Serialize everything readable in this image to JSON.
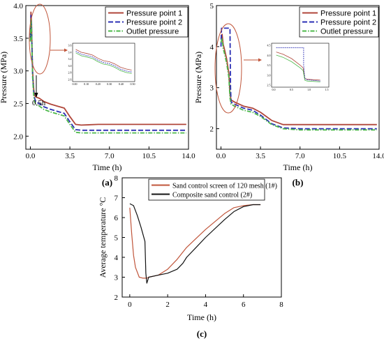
{
  "chart_data": [
    {
      "panel": "(a)",
      "type": "line",
      "xlabel": "Time (h)",
      "ylabel": "Pressure (MPa)",
      "xlim": [
        -0.4,
        14.0
      ],
      "ylim": [
        1.8,
        4.0
      ],
      "xticks": [
        "0.0",
        "3.5",
        "7.0",
        "10.5",
        "14.0"
      ],
      "yticks": [
        "2.0",
        "2.5",
        "3.0",
        "3.5",
        "4.0"
      ],
      "legend_position": "top-right",
      "annotation": "0.5h",
      "series": [
        {
          "name": "Pressure point 1",
          "color": "#b0463a",
          "dash": "solid",
          "x": [
            0,
            0.05,
            0.1,
            0.15,
            0.2,
            0.25,
            0.3,
            0.35,
            0.4,
            0.5,
            0.8,
            1.2,
            1.8,
            2.4,
            3.0,
            3.5,
            4.0,
            4.5,
            6.0,
            10.0,
            13.8
          ],
          "y": [
            3.55,
            3.9,
            3.75,
            3.35,
            3.0,
            2.85,
            2.72,
            2.65,
            2.62,
            2.6,
            2.58,
            2.53,
            2.49,
            2.46,
            2.43,
            2.3,
            2.18,
            2.17,
            2.18,
            2.18,
            2.18
          ]
        },
        {
          "name": "Pressure point 2",
          "color": "#2b2fb4",
          "dash": "dashed",
          "x": [
            0,
            0.05,
            0.1,
            0.15,
            0.2,
            0.25,
            0.3,
            0.35,
            0.4,
            0.5,
            0.8,
            1.2,
            1.8,
            2.4,
            3.0,
            3.5,
            4.0,
            4.5,
            6.0,
            10.0,
            13.8
          ],
          "y": [
            3.5,
            3.85,
            3.7,
            3.3,
            2.95,
            2.8,
            2.68,
            2.6,
            2.57,
            2.52,
            2.5,
            2.45,
            2.41,
            2.38,
            2.35,
            2.22,
            2.1,
            2.09,
            2.09,
            2.09,
            2.09
          ]
        },
        {
          "name": "Outlet pressure",
          "color": "#4cb84a",
          "dash": "dashdot",
          "x": [
            0,
            0.05,
            0.1,
            0.15,
            0.2,
            0.25,
            0.3,
            0.35,
            0.4,
            0.5,
            0.8,
            1.2,
            1.8,
            2.4,
            3.0,
            3.5,
            4.0,
            4.5,
            6.0,
            10.0,
            13.8
          ],
          "y": [
            3.45,
            3.8,
            3.65,
            3.25,
            2.9,
            2.75,
            2.63,
            2.55,
            2.52,
            2.48,
            2.46,
            2.41,
            2.37,
            2.34,
            2.31,
            2.18,
            2.06,
            2.05,
            2.05,
            2.05,
            2.05
          ]
        }
      ],
      "inset": {
        "xticks": [
          "0.00",
          "0.10",
          "0.20",
          "0.30",
          "0.40",
          "0.50"
        ],
        "yticks": [
          "2.6",
          "2.8",
          "3.0",
          "3.2",
          "3.4",
          "3.6"
        ]
      }
    },
    {
      "panel": "(b)",
      "type": "line",
      "xlabel": "Time (h)",
      "ylabel": "Pressure (MPa)",
      "xlim": [
        -0.4,
        14.0
      ],
      "ylim": [
        1.5,
        5.0
      ],
      "xticks": [
        "0.0",
        "3.5",
        "7.0",
        "10.5",
        "14.0"
      ],
      "yticks": [
        "2",
        "3",
        "4",
        "5"
      ],
      "legend_position": "top-right",
      "series": [
        {
          "name": "Pressure point 1",
          "color": "#b0463a",
          "dash": "solid",
          "x": [
            0,
            0.1,
            0.2,
            0.3,
            0.5,
            0.7,
            0.8,
            0.9,
            1.2,
            2.0,
            2.8,
            3.5,
            4.5,
            5.5,
            7.0,
            10.0,
            13.8
          ],
          "y": [
            4.2,
            4.3,
            4.05,
            3.95,
            3.7,
            3.35,
            2.85,
            2.7,
            2.65,
            2.55,
            2.5,
            2.4,
            2.2,
            2.1,
            2.1,
            2.1,
            2.1
          ]
        },
        {
          "name": "Pressure point 2",
          "color": "#2b2fb4",
          "dash": "dashed",
          "x": [
            0,
            0.05,
            0.8,
            0.85,
            0.9,
            1.2,
            2.0,
            2.8,
            3.5,
            4.5,
            5.5,
            7.0,
            10.0,
            13.8
          ],
          "y": [
            4.0,
            4.45,
            4.45,
            3.0,
            2.65,
            2.6,
            2.5,
            2.45,
            2.33,
            2.12,
            2.02,
            2.0,
            2.0,
            2.0
          ]
        },
        {
          "name": "Outlet pressure",
          "color": "#4cb84a",
          "dash": "dashdot",
          "x": [
            0,
            0.1,
            0.2,
            0.3,
            0.5,
            0.7,
            0.8,
            0.9,
            1.2,
            2.0,
            2.8,
            3.5,
            4.5,
            5.5,
            7.0,
            10.0,
            13.8
          ],
          "y": [
            4.1,
            4.2,
            3.95,
            3.85,
            3.6,
            3.25,
            2.75,
            2.6,
            2.55,
            2.45,
            2.4,
            2.3,
            2.1,
            2.0,
            1.97,
            1.97,
            1.97
          ]
        }
      ],
      "inset": {
        "xticks": [
          "0.0",
          "0.5",
          "1.0",
          "1.5"
        ],
        "yticks": [
          "2.5",
          "3.0",
          "3.5",
          "4.0",
          "4.5"
        ]
      }
    },
    {
      "panel": "(c)",
      "type": "line",
      "xlabel": "Time (h)",
      "ylabel": "Average temperature °C",
      "xlim": [
        -0.4,
        8
      ],
      "ylim": [
        2,
        8
      ],
      "xticks": [
        "0",
        "2",
        "4",
        "6",
        "8"
      ],
      "yticks": [
        "2",
        "3",
        "4",
        "5",
        "6",
        "7",
        "8"
      ],
      "legend_position": "top",
      "series": [
        {
          "name": "Sand control screen of 120 mesh (1#)",
          "color": "#c0553a",
          "x": [
            0,
            0.1,
            0.2,
            0.3,
            0.5,
            0.7,
            0.9,
            1.0,
            1.5,
            2.0,
            2.5,
            3.0,
            4.0,
            5.0,
            5.5,
            6.0,
            6.5,
            6.9
          ],
          "y": [
            6.5,
            5.2,
            4.1,
            3.5,
            3.0,
            2.95,
            2.95,
            3.0,
            3.1,
            3.4,
            3.9,
            4.5,
            5.4,
            6.2,
            6.5,
            6.6,
            6.65,
            6.65
          ]
        },
        {
          "name": "Composite sand control (2#)",
          "color": "#111111",
          "x": [
            0,
            0.2,
            0.4,
            0.6,
            0.8,
            0.85,
            0.9,
            1.0,
            1.5,
            2.0,
            2.5,
            2.8,
            3.0,
            3.5,
            4.0,
            5.0,
            5.5,
            6.0,
            6.5,
            6.9
          ],
          "y": [
            6.7,
            6.6,
            6.1,
            5.5,
            4.8,
            3.2,
            2.7,
            3.0,
            3.1,
            3.2,
            3.4,
            3.7,
            4.0,
            4.5,
            5.0,
            5.9,
            6.3,
            6.55,
            6.65,
            6.65
          ]
        }
      ]
    }
  ]
}
